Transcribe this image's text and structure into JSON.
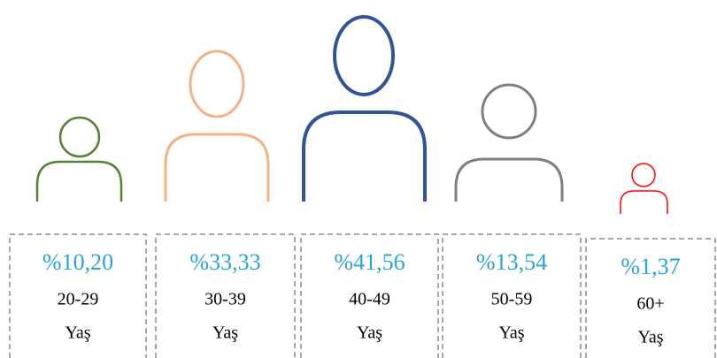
{
  "groups": [
    {
      "percent": "%10,20",
      "age": "20-29",
      "suffix": "Yaş",
      "color": "#548235"
    },
    {
      "percent": "%33,33",
      "age": "30-39",
      "suffix": "Yaş",
      "color": "#f4b183"
    },
    {
      "percent": "%41,56",
      "age": "40-49",
      "suffix": "Yaş",
      "color": "#2f5597"
    },
    {
      "percent": "%13,54",
      "age": "50-59",
      "suffix": "Yaş",
      "color": "#7f7f7f"
    },
    {
      "percent": "%1,37",
      "age": "60+",
      "suffix": "Yaş",
      "color": "#ff0000"
    }
  ]
}
